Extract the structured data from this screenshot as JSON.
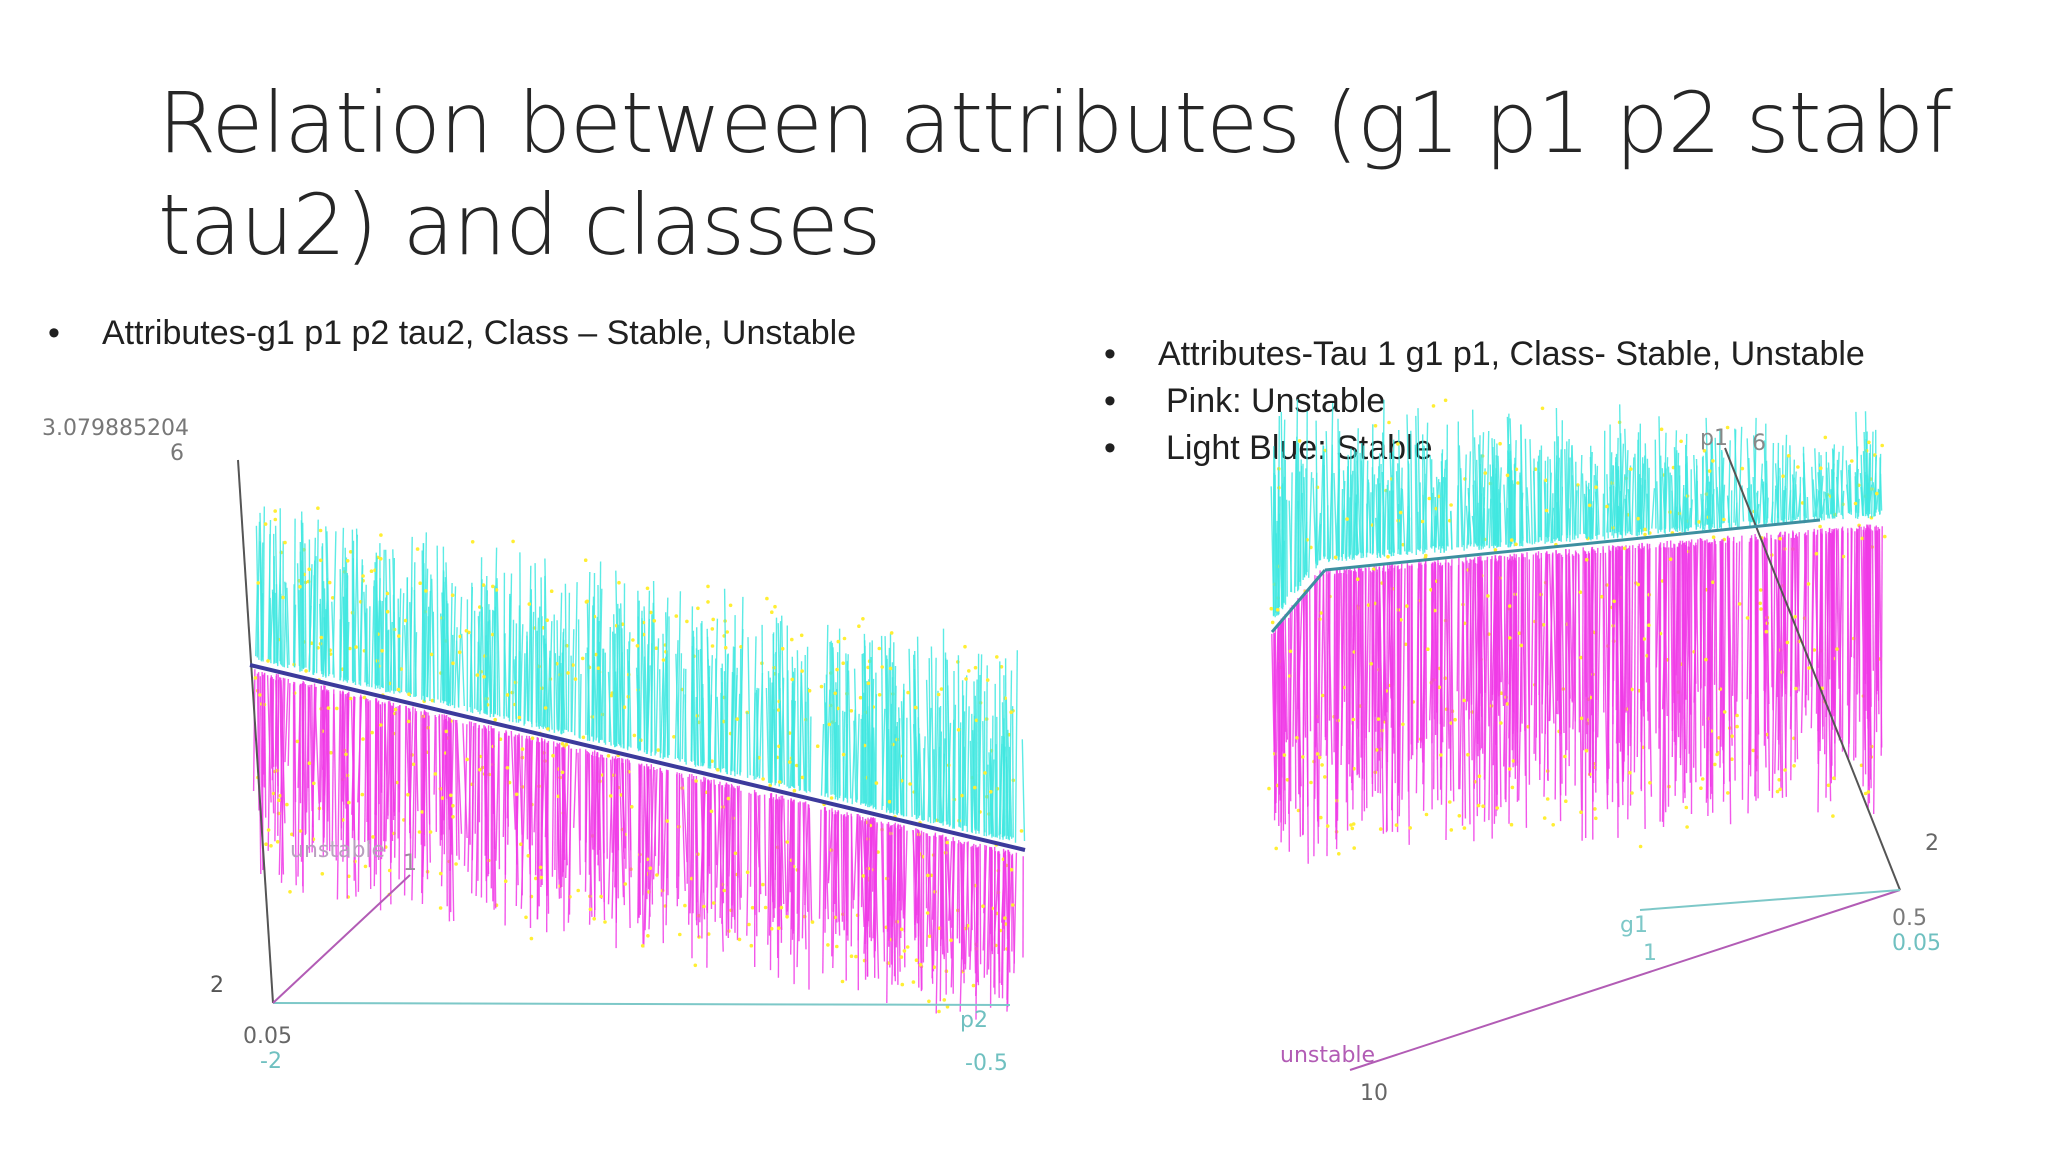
{
  "slide": {
    "title": "Relation between attributes (g1 p1 p2 stabf tau2) and classes",
    "left_bullets": [
      "Attributes-g1 p1 p2 tau2, Class – Stable, Unstable"
    ],
    "right_bullets": [
      "Attributes-Tau 1 g1 p1, Class- Stable, Unstable",
      "Pink: Unstable",
      "Light Blue: Stable"
    ]
  },
  "colors": {
    "stable": "#3fe8e0",
    "unstable": "#f03ae6",
    "point": "#ffee33",
    "axis": "#555555",
    "axis_cyan": "#6fc7c7",
    "axis_pink": "#b25cb5"
  },
  "chart_data": [
    {
      "type": "scatter",
      "classes": [
        "unstable",
        "stable"
      ],
      "axis_labels": {
        "vertical_top_tau2": "3.079885204",
        "vertical_top_tau1": "6",
        "vertical_bottom": "2",
        "class_axis_value": "unstable",
        "class_axis_tick": "1",
        "origin_g1": "0.05",
        "origin_p2": "-2",
        "x_name": "p2",
        "x_end": "-0.5"
      },
      "vertical_range": [
        2,
        6
      ],
      "x_range": [
        -2,
        -0.5
      ]
    },
    {
      "type": "scatter",
      "classes": [
        "unstable",
        "stable"
      ],
      "axis_labels": {
        "p1_name": "p1",
        "p1_top": "6",
        "tick_right": "2",
        "g1_name": "g1",
        "g1_tick": "1",
        "right_a": "0.5",
        "right_b": "0.05",
        "class_axis_value": "unstable",
        "class_axis_end": "10"
      },
      "vertical_range": [
        2,
        6
      ]
    }
  ]
}
